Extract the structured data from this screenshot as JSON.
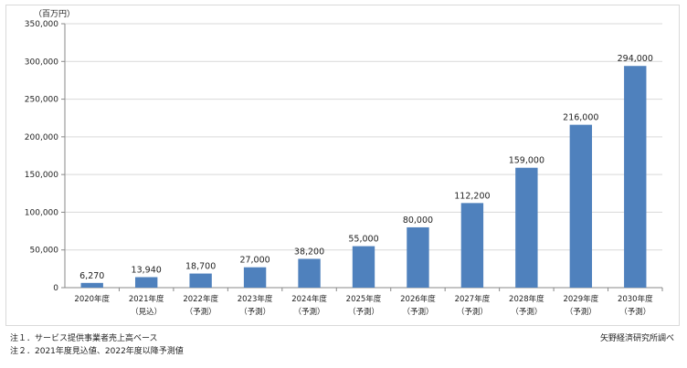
{
  "chart_data": {
    "type": "bar",
    "unit_label": "（百万円）",
    "categories": [
      [
        "2020年度",
        ""
      ],
      [
        "2021年度",
        "（見込）"
      ],
      [
        "2022年度",
        "（予測）"
      ],
      [
        "2023年度",
        "（予測）"
      ],
      [
        "2024年度",
        "（予測）"
      ],
      [
        "2025年度",
        "（予測）"
      ],
      [
        "2026年度",
        "（予測）"
      ],
      [
        "2027年度",
        "（予測）"
      ],
      [
        "2028年度",
        "（予測）"
      ],
      [
        "2029年度",
        "（予測）"
      ],
      [
        "2030年度",
        "（予測）"
      ]
    ],
    "values": [
      6270,
      13940,
      18700,
      27000,
      38200,
      55000,
      80000,
      112200,
      159000,
      216000,
      294000
    ],
    "value_labels": [
      "6,270",
      "13,940",
      "18,700",
      "27,000",
      "38,200",
      "55,000",
      "80,000",
      "112,200",
      "159,000",
      "216,000",
      "294,000"
    ],
    "ylim": [
      0,
      350000
    ],
    "yticks": [
      0,
      50000,
      100000,
      150000,
      200000,
      250000,
      300000,
      350000
    ],
    "ytick_labels": [
      "0",
      "50,000",
      "100,000",
      "150,000",
      "200,000",
      "250,000",
      "300,000",
      "350,000"
    ],
    "grid": true,
    "bar_color": "#4f81bd"
  },
  "notes": {
    "note1": "注１．サービス提供事業者売上高ベース",
    "note2": "注２．2021年度見込値、2022年度以降予測値",
    "source": "矢野経済研究所調べ"
  }
}
